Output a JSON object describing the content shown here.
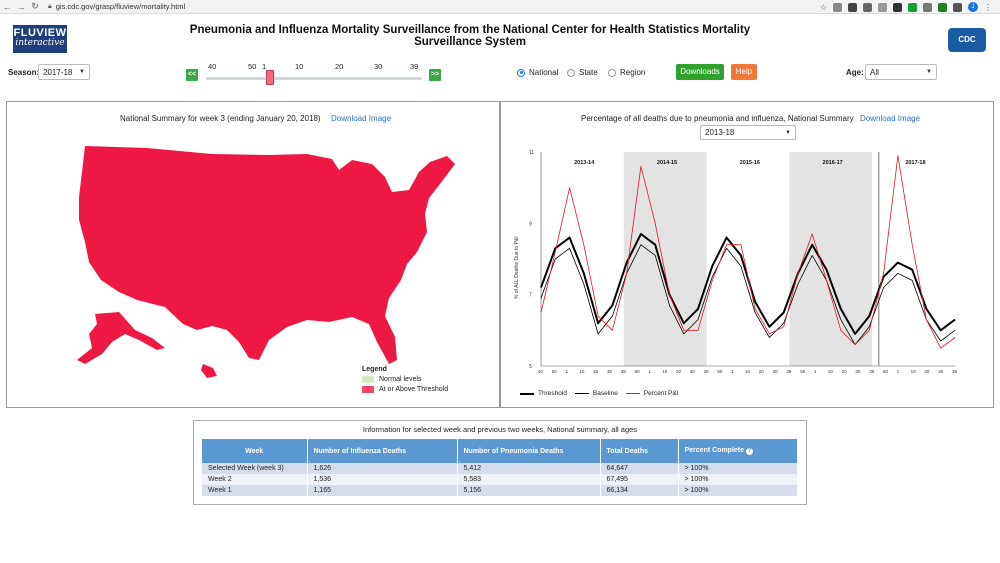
{
  "browser": {
    "url": "gis.cdc.gov/grasp/fluview/mortality.html",
    "profile_initial": "J"
  },
  "header": {
    "logo_line1": "FLUVIEW",
    "logo_line2": "interactive",
    "title": "Pneumonia and Influenza Mortality Surveillance from the National Center for Health Statistics Mortality Surveillance System",
    "cdc_label": "CDC"
  },
  "controls": {
    "season_label": "Season:",
    "season_value": "2017-18",
    "prev_label": "<<",
    "next_label": ">>",
    "week_ticks": [
      "40",
      "50",
      "1",
      "10",
      "20",
      "30",
      "39"
    ],
    "radios": [
      {
        "label": "National",
        "selected": true
      },
      {
        "label": "State",
        "selected": false
      },
      {
        "label": "Region",
        "selected": false
      }
    ],
    "downloads_label": "Downloads",
    "help_label": "Help",
    "age_label": "Age:",
    "age_value": "All",
    "colors": {
      "downloads": "#2ea12e",
      "help": "#f0793a"
    }
  },
  "map_panel": {
    "title": "National Summary for week 3 (ending January 20, 2018)",
    "download_label": "Download Image",
    "fill_color": "#ee1943",
    "legend": {
      "title": "Legend",
      "items": [
        {
          "label": "Normal levels",
          "color": "#d1ebc5"
        },
        {
          "label": "At or Above Threshold",
          "color": "#ee4b6a"
        }
      ]
    }
  },
  "chart_panel": {
    "title": "Percentage of all deaths due to pneumonia and influenza, National Summary",
    "season_select": "2013-18",
    "download_label": "Download Image",
    "legend": [
      {
        "label": "Threshold",
        "color": "#000000"
      },
      {
        "label": "Baseline",
        "color": "#000000"
      },
      {
        "label": "Percent P&I",
        "color": "#e0191e"
      }
    ]
  },
  "chart_data": {
    "type": "line",
    "ylabel": "% of ALL Deaths Due to P&I",
    "ylim": [
      5,
      11
    ],
    "y_ticks": [
      "5",
      "7",
      "9",
      "11"
    ],
    "seasons": [
      "2013-14",
      "2014-15",
      "2015-16",
      "2016-17",
      "2017-18"
    ],
    "season_shading": [
      false,
      true,
      false,
      true,
      false
    ],
    "x_tick_labels": [
      "40",
      "50",
      "1",
      "10",
      "20",
      "30",
      "39"
    ],
    "series": [
      {
        "name": "Threshold",
        "values": [
          7.2,
          8.3,
          8.6,
          7.6,
          6.2,
          6.7,
          7.9,
          8.7,
          8.4,
          7.0,
          6.2,
          6.6,
          7.8,
          8.6,
          8.1,
          6.8,
          6.1,
          6.5,
          7.6,
          8.4,
          7.7,
          6.6,
          5.9,
          6.4,
          7.5,
          7.9,
          7.7,
          6.6,
          6.0,
          6.3
        ]
      },
      {
        "name": "Baseline",
        "values": [
          6.9,
          8.0,
          8.3,
          7.3,
          5.9,
          6.4,
          7.6,
          8.4,
          8.1,
          6.7,
          5.9,
          6.3,
          7.5,
          8.3,
          7.8,
          6.5,
          5.8,
          6.2,
          7.3,
          8.1,
          7.4,
          6.3,
          5.6,
          6.1,
          7.2,
          7.6,
          7.4,
          6.3,
          5.7,
          6.0
        ]
      },
      {
        "name": "Percent P&I",
        "values": [
          6.5,
          8.2,
          10.0,
          8.4,
          6.4,
          6.0,
          7.6,
          10.6,
          9.0,
          7.0,
          6.0,
          6.0,
          7.4,
          8.4,
          8.4,
          6.6,
          5.9,
          6.1,
          7.6,
          8.7,
          7.4,
          6.0,
          5.6,
          6.0,
          7.6,
          10.9,
          8.4,
          6.3,
          5.5,
          5.8
        ]
      }
    ]
  },
  "table": {
    "caption": "Information for selected week and previous two weeks, National summary, all ages",
    "headers": [
      "Week",
      "Number of Influenza Deaths",
      "Number of Pneumonia Deaths",
      "Total Deaths",
      "Percent Complete"
    ],
    "help_glyph": "?",
    "rows": [
      [
        "Selected Week (week 3)",
        "1,626",
        "5,412",
        "64,647",
        "> 100%"
      ],
      [
        "Week 2",
        "1,536",
        "5,583",
        "67,495",
        "> 100%"
      ],
      [
        "Week 1",
        "1,165",
        "5,156",
        "66,134",
        "> 100%"
      ]
    ]
  }
}
